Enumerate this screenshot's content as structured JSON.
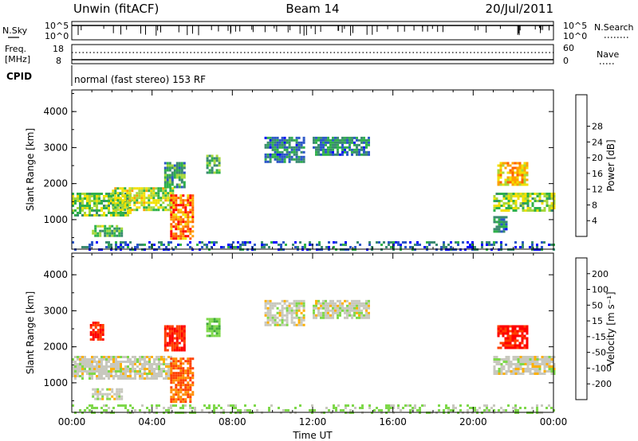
{
  "header": {
    "station": "Unwin (fitACF)",
    "beam": "Beam 14",
    "date": "20/Jul/2011"
  },
  "top_panels": {
    "nsky_label": "N.Sky",
    "nsky_ticks": [
      "10^5",
      "10^0"
    ],
    "nsearch_label": "N.Search",
    "freq_label_1": "Freq.",
    "freq_label_2": "[MHz]",
    "freq_ticks": [
      "18",
      "8"
    ],
    "nave_ticks": [
      "60",
      "0"
    ],
    "nave_label": "Nave",
    "cpid_label": "CPID",
    "cpid_text": "normal (fast stereo) 153 RF"
  },
  "colors": {
    "power": [
      "#0000ff",
      "#2a55c8",
      "#3a8a70",
      "#2fb14a",
      "#a6d83b",
      "#f2e000",
      "#ffa000",
      "#ff6000",
      "#ff0000"
    ],
    "velocity": [
      "#ff0000",
      "#ff4000",
      "#ff8c00",
      "#ffb000",
      "#c8c8be",
      "#7ed84a",
      "#3fa83a",
      "#3050c8",
      "#1010ff"
    ]
  },
  "chart_data": [
    {
      "type": "heatmap",
      "panel": "power",
      "xlabel": "",
      "ylabel": "Slant Range [km]",
      "x_ticks": [
        "00:00",
        "04:00",
        "08:00",
        "12:00",
        "16:00",
        "20:00",
        "00:00"
      ],
      "y_ticks": [
        "1000",
        "2000",
        "3000",
        "4000"
      ],
      "xlim_hours": [
        0,
        24
      ],
      "ylim_km": [
        180,
        4600
      ],
      "colorbar_label": "Power [dB]",
      "colorbar_ticks": [
        "4",
        "8",
        "12",
        "16",
        "20",
        "24",
        "28"
      ],
      "colorbar_range": [
        0,
        30
      ],
      "echo_regions": [
        {
          "t0": 0.0,
          "t1": 2.9,
          "r0": 1150,
          "r1": 1750,
          "value": 14
        },
        {
          "t0": 2.0,
          "t1": 5.0,
          "r0": 1250,
          "r1": 1900,
          "value": 16
        },
        {
          "t0": 1.0,
          "t1": 2.5,
          "r0": 550,
          "r1": 850,
          "value": 12
        },
        {
          "t0": 4.9,
          "t1": 6.0,
          "r0": 500,
          "r1": 1700,
          "value": 24
        },
        {
          "t0": 4.6,
          "t1": 5.6,
          "r0": 1900,
          "r1": 2600,
          "value": 10
        },
        {
          "t0": 6.7,
          "t1": 7.3,
          "r0": 2300,
          "r1": 2800,
          "value": 12
        },
        {
          "t0": 9.6,
          "t1": 11.6,
          "r0": 2600,
          "r1": 3300,
          "value": 8
        },
        {
          "t0": 12.0,
          "t1": 14.8,
          "r0": 2800,
          "r1": 3300,
          "value": 8
        },
        {
          "t0": 21.0,
          "t1": 24.0,
          "r0": 1250,
          "r1": 1750,
          "value": 14
        },
        {
          "t0": 21.2,
          "t1": 22.7,
          "r0": 2000,
          "r1": 2600,
          "value": 20
        },
        {
          "t0": 21.0,
          "t1": 21.6,
          "r0": 700,
          "r1": 1100,
          "value": 8
        },
        {
          "t0": 0.0,
          "t1": 24.0,
          "r0": 200,
          "r1": 400,
          "value": 6
        }
      ]
    },
    {
      "type": "heatmap",
      "panel": "velocity",
      "xlabel": "Time UT",
      "ylabel": "Slant Range [km]",
      "x_ticks": [
        "00:00",
        "04:00",
        "08:00",
        "12:00",
        "16:00",
        "20:00",
        "00:00"
      ],
      "y_ticks": [
        "1000",
        "2000",
        "3000",
        "4000"
      ],
      "xlim_hours": [
        0,
        24
      ],
      "ylim_km": [
        180,
        4600
      ],
      "colorbar_label": "Velocity [m s⁻¹]",
      "colorbar_ticks": [
        "-200",
        "-100",
        "-50",
        "-15",
        "15",
        "50",
        "100",
        "200"
      ],
      "colorbar_range": [
        -250,
        250
      ],
      "echo_regions": [
        {
          "t0": 0.0,
          "t1": 5.0,
          "r0": 1150,
          "r1": 1750,
          "value": 0
        },
        {
          "t0": 1.0,
          "t1": 2.5,
          "r0": 550,
          "r1": 850,
          "value": 0
        },
        {
          "t0": 4.9,
          "t1": 6.0,
          "r0": 500,
          "r1": 1700,
          "value": -100
        },
        {
          "t0": 0.9,
          "t1": 1.6,
          "r0": 2200,
          "r1": 2700,
          "value": -200
        },
        {
          "t0": 4.6,
          "t1": 5.6,
          "r0": 1900,
          "r1": 2600,
          "value": -200
        },
        {
          "t0": 6.7,
          "t1": 7.3,
          "r0": 2300,
          "r1": 2800,
          "value": 40
        },
        {
          "t0": 9.6,
          "t1": 11.6,
          "r0": 2600,
          "r1": 3300,
          "value": 0
        },
        {
          "t0": 12.0,
          "t1": 14.8,
          "r0": 2800,
          "r1": 3300,
          "value": 0
        },
        {
          "t0": 21.0,
          "t1": 24.0,
          "r0": 1250,
          "r1": 1750,
          "value": 0
        },
        {
          "t0": 21.2,
          "t1": 22.7,
          "r0": 2000,
          "r1": 2600,
          "value": -200
        },
        {
          "t0": 0.0,
          "t1": 24.0,
          "r0": 200,
          "r1": 400,
          "value": 20
        }
      ]
    }
  ]
}
